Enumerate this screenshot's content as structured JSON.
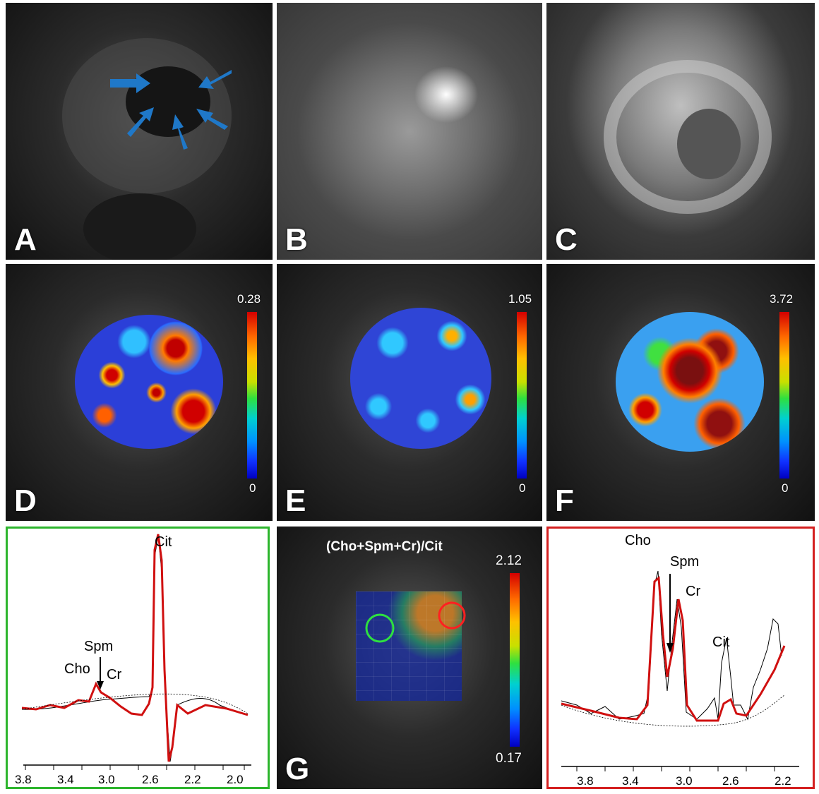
{
  "panels": {
    "A": {
      "letter": "A"
    },
    "B": {
      "letter": "B"
    },
    "C": {
      "letter": "C"
    },
    "D": {
      "letter": "D",
      "colorbar_max": "0.28",
      "colorbar_min": "0"
    },
    "E": {
      "letter": "E",
      "colorbar_max": "1.05",
      "colorbar_min": "0"
    },
    "F": {
      "letter": "F",
      "colorbar_max": "3.72",
      "colorbar_min": "0"
    },
    "G": {
      "letter": "G",
      "map_title": "(Cho+Spm+Cr)/Cit",
      "colorbar_max": "2.12",
      "colorbar_min": "0.17"
    }
  },
  "spectrum_left": {
    "border_color": "#2db52d",
    "peaks": {
      "cit": "Cit",
      "spm": "Spm",
      "cho": "Cho",
      "cr": "Cr"
    },
    "axis_ticks": [
      "3.8",
      "3.4",
      "3.0",
      "2.6",
      "2.2",
      "2.0"
    ]
  },
  "spectrum_right": {
    "border_color": "#d42020",
    "peaks": {
      "cho": "Cho",
      "spm": "Spm",
      "cr": "Cr",
      "cit": "Cit"
    },
    "axis_ticks": [
      "3.8",
      "3.4",
      "3.0",
      "2.6",
      "2.2"
    ]
  },
  "colors": {
    "arrow": "#1f78c8",
    "fit": "#d01010",
    "voxel_green": "#2ee040",
    "voxel_red": "#ff2020"
  }
}
